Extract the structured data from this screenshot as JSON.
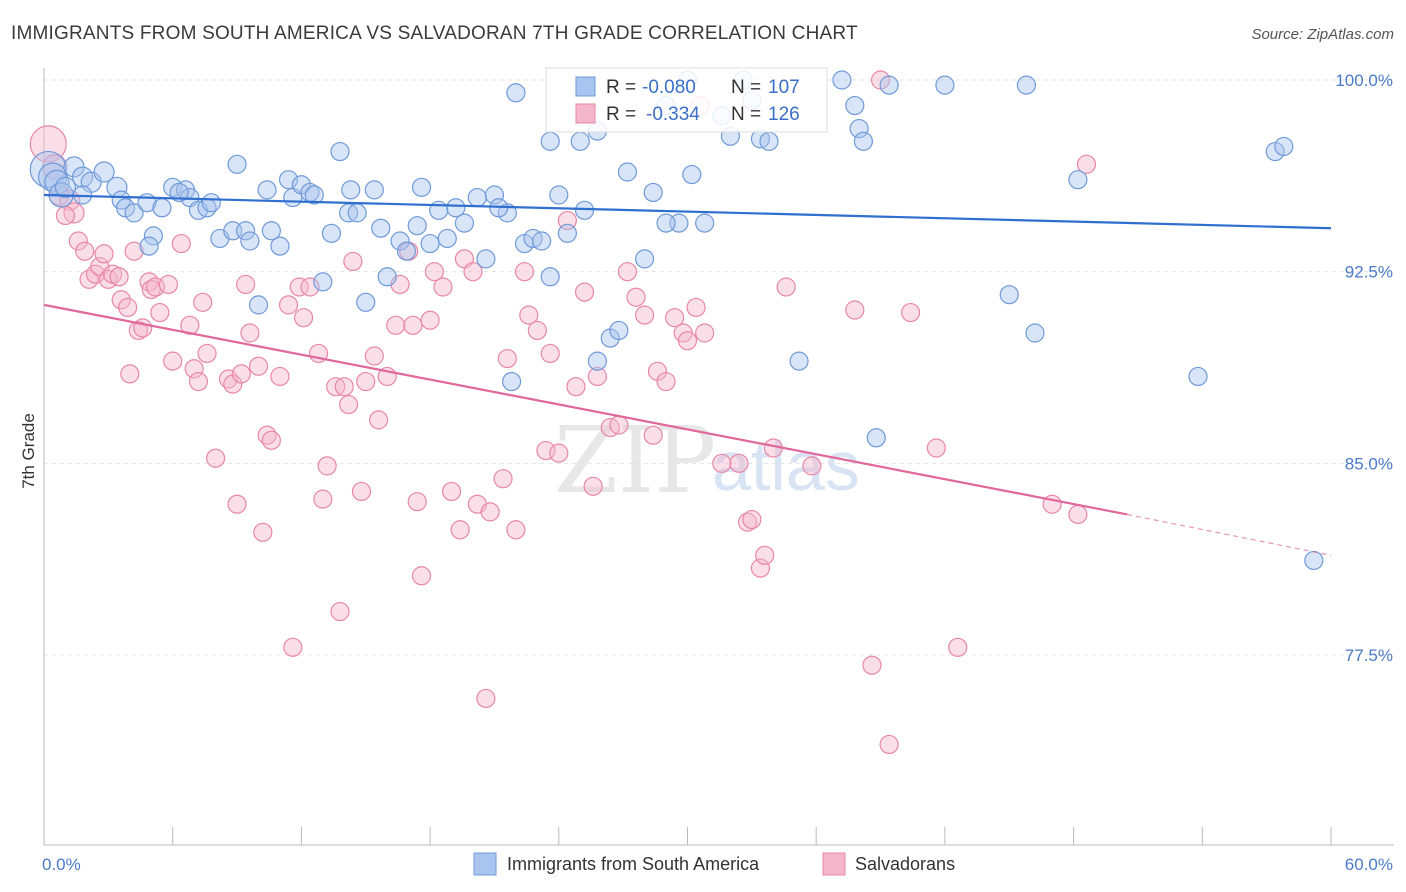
{
  "chart_data": {
    "type": "scatter",
    "title": "IMMIGRANTS FROM SOUTH AMERICA VS SALVADORAN 7TH GRADE CORRELATION CHART",
    "source": "Source: ZipAtlas.com",
    "xlabel": "",
    "ylabel": "7th Grade",
    "xlim": [
      0,
      60
    ],
    "ylim": [
      71.0,
      101.5
    ],
    "x_tick_labels": [
      {
        "value": 0,
        "label": "0.0%"
      },
      {
        "value": 60,
        "label": "60.0%"
      }
    ],
    "y_tick_labels": [
      {
        "value": 100.0,
        "label": "100.0%"
      },
      {
        "value": 92.5,
        "label": "92.5%"
      },
      {
        "value": 85.0,
        "label": "85.0%"
      },
      {
        "value": 77.5,
        "label": "77.5%"
      }
    ],
    "grid": true,
    "legend_position": "top-center",
    "legend": {
      "rows": [
        {
          "r_label": "R =",
          "r_value": "-0.080",
          "n_label": "N =",
          "n_value": "107"
        },
        {
          "r_label": "R =",
          "r_value": "-0.334",
          "n_label": "N =",
          "n_value": "126"
        }
      ]
    },
    "bottom_legend": [
      "Immigrants from South America",
      "Salvadorans"
    ],
    "watermark": {
      "zip": "ZIP",
      "atlas": "atlas"
    },
    "colors": {
      "blue_fill": "#a9c4ee",
      "blue_stroke": "#6f9ad9",
      "blue_line": "#2f6fd0",
      "pink_fill": "#f4b6cb",
      "pink_stroke": "#e887a8",
      "pink_line": "#e0689a",
      "grid": "#e4e4e4",
      "axis": "#bbbbbb"
    },
    "series": [
      {
        "name": "Immigrants from South America",
        "trend": {
          "x0": 0,
          "y0": 95.5,
          "x1": 60,
          "y1": 94.2
        },
        "points": [
          [
            0.2,
            96.5,
            18
          ],
          [
            0.4,
            96.2,
            14
          ],
          [
            0.6,
            96.0,
            12
          ],
          [
            0.8,
            95.5,
            12
          ],
          [
            1.0,
            95.8,
            10
          ],
          [
            1.4,
            96.6,
            10
          ],
          [
            1.8,
            96.2,
            10
          ],
          [
            2.2,
            96.0,
            10
          ],
          [
            2.8,
            96.4,
            10
          ],
          [
            3.4,
            95.8,
            10
          ],
          [
            1.8,
            95.5,
            9
          ],
          [
            3.6,
            95.3,
            9
          ],
          [
            3.8,
            95.0,
            9
          ],
          [
            4.2,
            94.8,
            9
          ],
          [
            4.8,
            95.2,
            9
          ],
          [
            5.5,
            95.0,
            9
          ],
          [
            6.0,
            95.8,
            9
          ],
          [
            6.6,
            95.7,
            9
          ],
          [
            6.8,
            95.4,
            9
          ],
          [
            7.2,
            94.9,
            9
          ],
          [
            7.6,
            95.0,
            9
          ],
          [
            7.8,
            95.2,
            9
          ],
          [
            8.2,
            93.8,
            9
          ],
          [
            8.8,
            94.1,
            9
          ],
          [
            9.4,
            94.1,
            9
          ],
          [
            9.0,
            96.7,
            9
          ],
          [
            9.6,
            93.7,
            9
          ],
          [
            10.0,
            91.2,
            9
          ],
          [
            10.4,
            95.7,
            9
          ],
          [
            11.0,
            93.5,
            9
          ],
          [
            11.4,
            96.1,
            9
          ],
          [
            11.6,
            95.4,
            9
          ],
          [
            12.0,
            95.9,
            9
          ],
          [
            12.4,
            95.6,
            9
          ],
          [
            13.4,
            94.0,
            9
          ],
          [
            14.2,
            94.8,
            9
          ],
          [
            14.6,
            94.8,
            9
          ],
          [
            13.0,
            92.1,
            9
          ],
          [
            13.8,
            97.2,
            9
          ],
          [
            15.0,
            91.3,
            9
          ],
          [
            15.4,
            95.7,
            9
          ],
          [
            16.0,
            92.3,
            9
          ],
          [
            16.6,
            93.7,
            9
          ],
          [
            16.9,
            93.3,
            9
          ],
          [
            17.4,
            94.3,
            9
          ],
          [
            17.6,
            95.8,
            9
          ],
          [
            18.0,
            93.6,
            9
          ],
          [
            18.4,
            94.9,
            9
          ],
          [
            18.8,
            93.8,
            9
          ],
          [
            19.2,
            95.0,
            9
          ],
          [
            19.6,
            94.4,
            9
          ],
          [
            20.2,
            95.4,
            9
          ],
          [
            20.6,
            93.0,
            9
          ],
          [
            21.0,
            95.5,
            9
          ],
          [
            21.6,
            94.8,
            9
          ],
          [
            21.2,
            95.0,
            9
          ],
          [
            22.4,
            93.6,
            9
          ],
          [
            22.8,
            93.8,
            9
          ],
          [
            23.2,
            93.7,
            9
          ],
          [
            23.6,
            92.3,
            9
          ],
          [
            21.8,
            88.2,
            9
          ],
          [
            24.0,
            95.5,
            9
          ],
          [
            25.2,
            94.9,
            9
          ],
          [
            24.4,
            94.0,
            9
          ],
          [
            25.8,
            89.0,
            9
          ],
          [
            26.4,
            89.9,
            9
          ],
          [
            26.8,
            90.2,
            9
          ],
          [
            27.2,
            96.4,
            9
          ],
          [
            28.0,
            93.0,
            9
          ],
          [
            28.4,
            95.6,
            9
          ],
          [
            29.6,
            94.4,
            9
          ],
          [
            30.2,
            96.3,
            9
          ],
          [
            30.8,
            94.4,
            9
          ],
          [
            29.0,
            99.0,
            9
          ],
          [
            22.0,
            99.5,
            9
          ],
          [
            23.6,
            97.6,
            9
          ],
          [
            25.0,
            97.6,
            9
          ],
          [
            25.8,
            98.0,
            9
          ],
          [
            31.6,
            98.6,
            9
          ],
          [
            32.0,
            97.8,
            9
          ],
          [
            33.4,
            97.7,
            9
          ],
          [
            33.8,
            97.6,
            9
          ],
          [
            33.0,
            99.2,
            9
          ],
          [
            32.6,
            100.0,
            9
          ],
          [
            37.2,
            100.0,
            9
          ],
          [
            38.0,
            98.1,
            9
          ],
          [
            38.2,
            97.6,
            9
          ],
          [
            39.4,
            99.8,
            9
          ],
          [
            37.8,
            99.0,
            9
          ],
          [
            42.0,
            99.8,
            9
          ],
          [
            29.0,
            94.4,
            9
          ],
          [
            30.0,
            100.0,
            9
          ],
          [
            35.2,
            89.0,
            9
          ],
          [
            38.8,
            86.0,
            9
          ],
          [
            45.0,
            91.6,
            9
          ],
          [
            46.2,
            90.1,
            9
          ],
          [
            45.8,
            99.8,
            9
          ],
          [
            48.2,
            96.1,
            9
          ],
          [
            53.8,
            88.4,
            9
          ],
          [
            57.4,
            97.2,
            9
          ],
          [
            57.8,
            97.4,
            9
          ],
          [
            59.2,
            81.2,
            9
          ],
          [
            10.6,
            94.1,
            9
          ],
          [
            6.3,
            95.6,
            9
          ],
          [
            5.1,
            93.9,
            9
          ],
          [
            4.9,
            93.5,
            9
          ],
          [
            12.6,
            95.5,
            9
          ],
          [
            14.3,
            95.7,
            9
          ],
          [
            15.7,
            94.2,
            9
          ]
        ]
      },
      {
        "name": "Salvadorans",
        "trend": {
          "x0": 0,
          "y0": 91.2,
          "x1": 50.5,
          "y1": 83.0,
          "dash_to_x": 60,
          "dash_to_y": 81.4
        },
        "points": [
          [
            0.2,
            97.5,
            18
          ],
          [
            0.5,
            96.6,
            12
          ],
          [
            0.7,
            95.5,
            10
          ],
          [
            1.2,
            95.3,
            10
          ],
          [
            1.4,
            94.8,
            10
          ],
          [
            1.0,
            94.7,
            9
          ],
          [
            1.6,
            93.7,
            9
          ],
          [
            1.9,
            93.3,
            9
          ],
          [
            2.1,
            92.2,
            9
          ],
          [
            2.4,
            92.4,
            9
          ],
          [
            2.6,
            92.7,
            9
          ],
          [
            2.8,
            93.2,
            9
          ],
          [
            3.0,
            92.2,
            9
          ],
          [
            3.2,
            92.4,
            9
          ],
          [
            3.5,
            92.3,
            9
          ],
          [
            3.6,
            91.4,
            9
          ],
          [
            3.9,
            91.1,
            9
          ],
          [
            4.0,
            88.5,
            9
          ],
          [
            4.2,
            93.3,
            9
          ],
          [
            4.4,
            90.2,
            9
          ],
          [
            4.6,
            90.3,
            9
          ],
          [
            4.9,
            92.1,
            9
          ],
          [
            5.0,
            91.8,
            9
          ],
          [
            5.2,
            91.9,
            9
          ],
          [
            5.4,
            90.9,
            9
          ],
          [
            5.8,
            92.0,
            9
          ],
          [
            6.0,
            89.0,
            9
          ],
          [
            6.4,
            93.6,
            9
          ],
          [
            6.8,
            90.4,
            9
          ],
          [
            7.0,
            88.7,
            9
          ],
          [
            7.2,
            88.2,
            9
          ],
          [
            7.4,
            91.3,
            9
          ],
          [
            7.6,
            89.3,
            9
          ],
          [
            8.0,
            85.2,
            9
          ],
          [
            8.6,
            88.3,
            9
          ],
          [
            8.8,
            88.1,
            9
          ],
          [
            9.0,
            83.4,
            9
          ],
          [
            9.2,
            88.5,
            9
          ],
          [
            9.4,
            92.0,
            9
          ],
          [
            9.6,
            90.1,
            9
          ],
          [
            10.0,
            88.8,
            9
          ],
          [
            10.2,
            82.3,
            9
          ],
          [
            10.4,
            86.1,
            9
          ],
          [
            10.6,
            85.9,
            9
          ],
          [
            11.0,
            88.4,
            9
          ],
          [
            11.4,
            91.2,
            9
          ],
          [
            11.6,
            77.8,
            9
          ],
          [
            11.9,
            91.9,
            9
          ],
          [
            12.1,
            90.7,
            9
          ],
          [
            12.4,
            91.9,
            9
          ],
          [
            12.8,
            89.3,
            9
          ],
          [
            13.0,
            83.6,
            9
          ],
          [
            13.2,
            84.9,
            9
          ],
          [
            13.6,
            88.0,
            9
          ],
          [
            13.8,
            79.2,
            9
          ],
          [
            14.0,
            88.0,
            9
          ],
          [
            14.2,
            87.3,
            9
          ],
          [
            14.4,
            92.9,
            9
          ],
          [
            14.8,
            83.9,
            9
          ],
          [
            15.0,
            88.2,
            9
          ],
          [
            15.4,
            89.2,
            9
          ],
          [
            15.6,
            86.7,
            9
          ],
          [
            16.0,
            88.4,
            9
          ],
          [
            16.4,
            90.4,
            9
          ],
          [
            16.6,
            92.0,
            9
          ],
          [
            17.0,
            93.3,
            9
          ],
          [
            17.2,
            90.4,
            9
          ],
          [
            17.4,
            83.5,
            9
          ],
          [
            17.6,
            80.6,
            9
          ],
          [
            18.0,
            90.6,
            9
          ],
          [
            18.2,
            92.5,
            9
          ],
          [
            18.6,
            91.9,
            9
          ],
          [
            19.0,
            83.9,
            9
          ],
          [
            19.4,
            82.4,
            9
          ],
          [
            19.6,
            93.0,
            9
          ],
          [
            20.0,
            92.5,
            9
          ],
          [
            20.2,
            83.4,
            9
          ],
          [
            20.6,
            75.8,
            9
          ],
          [
            20.8,
            83.1,
            9
          ],
          [
            21.4,
            84.4,
            9
          ],
          [
            21.6,
            89.1,
            9
          ],
          [
            22.0,
            82.4,
            9
          ],
          [
            22.4,
            92.5,
            9
          ],
          [
            22.6,
            90.8,
            9
          ],
          [
            23.0,
            90.2,
            9
          ],
          [
            23.4,
            85.5,
            9
          ],
          [
            23.6,
            89.3,
            9
          ],
          [
            24.0,
            85.4,
            9
          ],
          [
            24.4,
            94.5,
            9
          ],
          [
            24.8,
            88.0,
            9
          ],
          [
            25.2,
            91.7,
            9
          ],
          [
            25.6,
            84.1,
            9
          ],
          [
            25.8,
            88.4,
            9
          ],
          [
            26.4,
            86.4,
            9
          ],
          [
            26.8,
            86.5,
            9
          ],
          [
            27.2,
            92.5,
            9
          ],
          [
            27.6,
            91.5,
            9
          ],
          [
            28.0,
            90.8,
            9
          ],
          [
            28.4,
            86.1,
            9
          ],
          [
            28.6,
            88.6,
            9
          ],
          [
            29.0,
            88.2,
            9
          ],
          [
            29.4,
            90.7,
            9
          ],
          [
            29.8,
            90.1,
            9
          ],
          [
            30.0,
            89.8,
            9
          ],
          [
            30.4,
            91.1,
            9
          ],
          [
            30.8,
            90.1,
            9
          ],
          [
            31.6,
            85.0,
            9
          ],
          [
            32.4,
            85.0,
            9
          ],
          [
            32.8,
            82.7,
            9
          ],
          [
            33.0,
            82.8,
            9
          ],
          [
            33.4,
            80.9,
            9
          ],
          [
            33.6,
            81.4,
            9
          ],
          [
            34.0,
            85.6,
            9
          ],
          [
            34.6,
            91.9,
            9
          ],
          [
            35.8,
            84.9,
            9
          ],
          [
            37.8,
            91.0,
            9
          ],
          [
            38.6,
            77.1,
            9
          ],
          [
            39.4,
            74.0,
            9
          ],
          [
            40.4,
            90.9,
            9
          ],
          [
            41.6,
            85.6,
            9
          ],
          [
            42.6,
            77.8,
            9
          ],
          [
            47.0,
            83.4,
            9
          ],
          [
            48.2,
            83.0,
            9
          ],
          [
            48.6,
            96.7,
            9
          ],
          [
            39.0,
            100.0,
            9
          ],
          [
            30.6,
            99.0,
            9
          ]
        ]
      }
    ]
  }
}
